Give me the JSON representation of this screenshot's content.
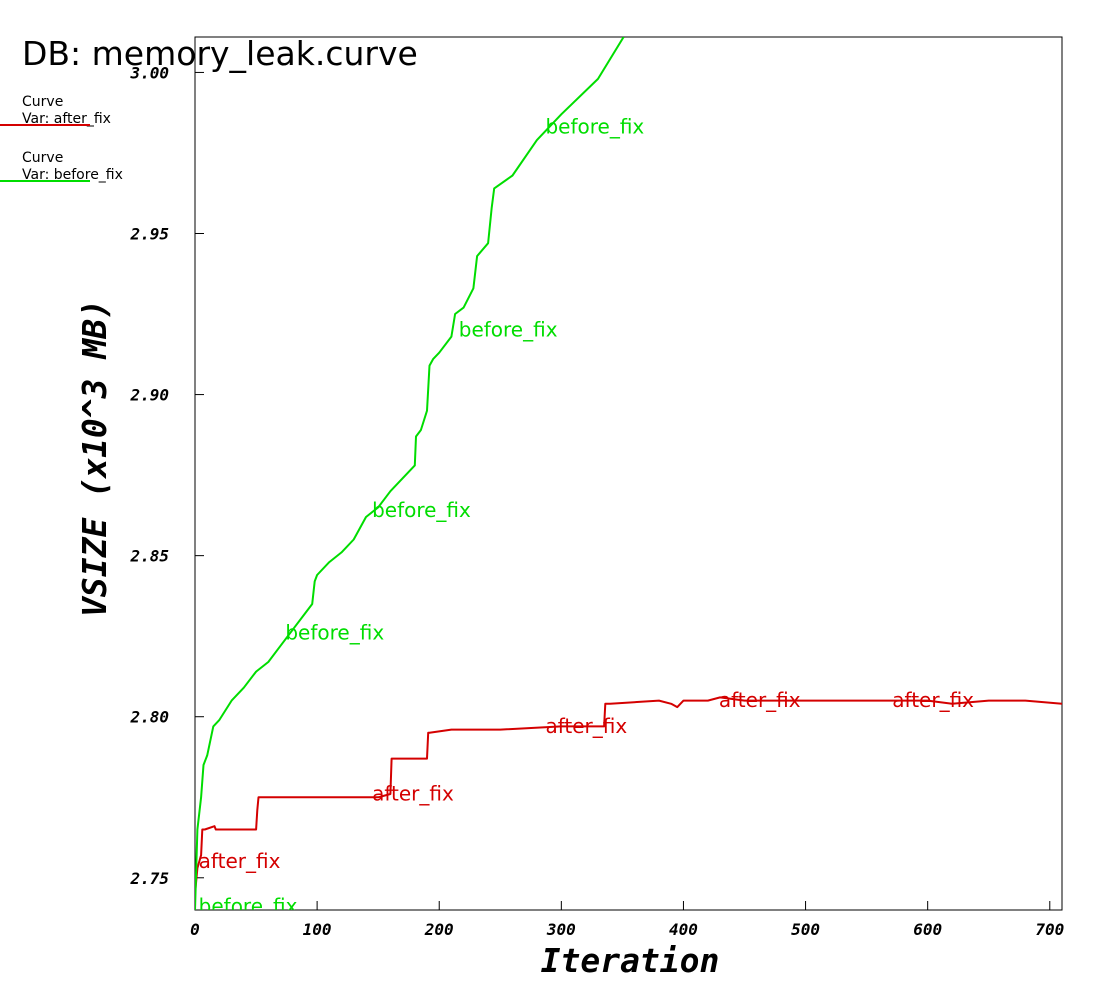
{
  "header": {
    "db_title": "DB: memory_leak.curve"
  },
  "legend": [
    {
      "title": "Curve",
      "var": "Var: after_fix",
      "color": "#d40000"
    },
    {
      "title": "Curve",
      "var": "Var: before_fix",
      "color": "#00dd00"
    }
  ],
  "chart_data": {
    "type": "line",
    "xlabel": "Iteration",
    "ylabel": "VSIZE (x10^3 MB)",
    "xlim": [
      0,
      710
    ],
    "ylim": [
      2.74,
      3.011
    ],
    "xticks": [
      0,
      100,
      200,
      300,
      400,
      500,
      600,
      700
    ],
    "xtick_labels": [
      "0",
      "100",
      "200",
      "300",
      "400",
      "500",
      "600",
      "700"
    ],
    "yticks": [
      2.75,
      2.8,
      2.85,
      2.9,
      2.95,
      3.0
    ],
    "ytick_labels": [
      "2.75",
      "2.80",
      "2.85",
      "2.90",
      "2.95",
      "3.00"
    ],
    "grid": false,
    "legend_position": "top-left",
    "series": [
      {
        "name": "after_fix",
        "color": "#d40000",
        "x": [
          0,
          2,
          5,
          6,
          8,
          16,
          17,
          50,
          51,
          52,
          60,
          100,
          101,
          150,
          160,
          161,
          162,
          190,
          191,
          192,
          210,
          250,
          300,
          330,
          335,
          336,
          340,
          380,
          390,
          395,
          400,
          420,
          430,
          450,
          480,
          500,
          520,
          560,
          600,
          620,
          650,
          680,
          710
        ],
        "values": [
          2.745,
          2.753,
          2.757,
          2.765,
          2.765,
          2.766,
          2.765,
          2.765,
          2.771,
          2.775,
          2.775,
          2.775,
          2.775,
          2.775,
          2.776,
          2.787,
          2.787,
          2.787,
          2.795,
          2.795,
          2.796,
          2.796,
          2.797,
          2.797,
          2.797,
          2.804,
          2.804,
          2.805,
          2.804,
          2.803,
          2.805,
          2.805,
          2.806,
          2.805,
          2.805,
          2.805,
          2.805,
          2.805,
          2.805,
          2.804,
          2.805,
          2.805,
          2.804
        ]
      },
      {
        "name": "before_fix",
        "color": "#00dd00",
        "x": [
          0,
          2,
          5,
          7,
          10,
          15,
          20,
          30,
          40,
          50,
          60,
          70,
          80,
          90,
          96,
          98,
          100,
          110,
          120,
          130,
          140,
          150,
          160,
          170,
          180,
          181,
          185,
          190,
          192,
          195,
          200,
          210,
          213,
          220,
          228,
          231,
          240,
          243,
          245,
          260,
          280,
          300,
          330,
          351
        ],
        "values": [
          2.74,
          2.765,
          2.775,
          2.785,
          2.788,
          2.797,
          2.799,
          2.805,
          2.809,
          2.814,
          2.817,
          2.822,
          2.827,
          2.832,
          2.835,
          2.842,
          2.844,
          2.848,
          2.851,
          2.855,
          2.862,
          2.865,
          2.87,
          2.874,
          2.878,
          2.887,
          2.889,
          2.895,
          2.909,
          2.911,
          2.913,
          2.918,
          2.925,
          2.927,
          2.933,
          2.943,
          2.947,
          2.958,
          2.964,
          2.968,
          2.979,
          2.987,
          2.998,
          3.011
        ]
      }
    ],
    "annotations": [
      {
        "text": "after_fix",
        "series": "after_fix",
        "x": 3,
        "y": 2.753
      },
      {
        "text": "after_fix",
        "series": "after_fix",
        "x": 145,
        "y": 2.774
      },
      {
        "text": "after_fix",
        "series": "after_fix",
        "x": 287,
        "y": 2.795
      },
      {
        "text": "after_fix",
        "series": "after_fix",
        "x": 429,
        "y": 2.803
      },
      {
        "text": "after_fix",
        "series": "after_fix",
        "x": 571,
        "y": 2.803
      },
      {
        "text": "before_fix",
        "series": "before_fix",
        "x": 3,
        "y": 2.739
      },
      {
        "text": "before_fix",
        "series": "before_fix",
        "x": 74,
        "y": 2.824
      },
      {
        "text": "before_fix",
        "series": "before_fix",
        "x": 145,
        "y": 2.862
      },
      {
        "text": "before_fix",
        "series": "before_fix",
        "x": 216,
        "y": 2.918
      },
      {
        "text": "before_fix",
        "series": "before_fix",
        "x": 287,
        "y": 2.981
      }
    ]
  }
}
